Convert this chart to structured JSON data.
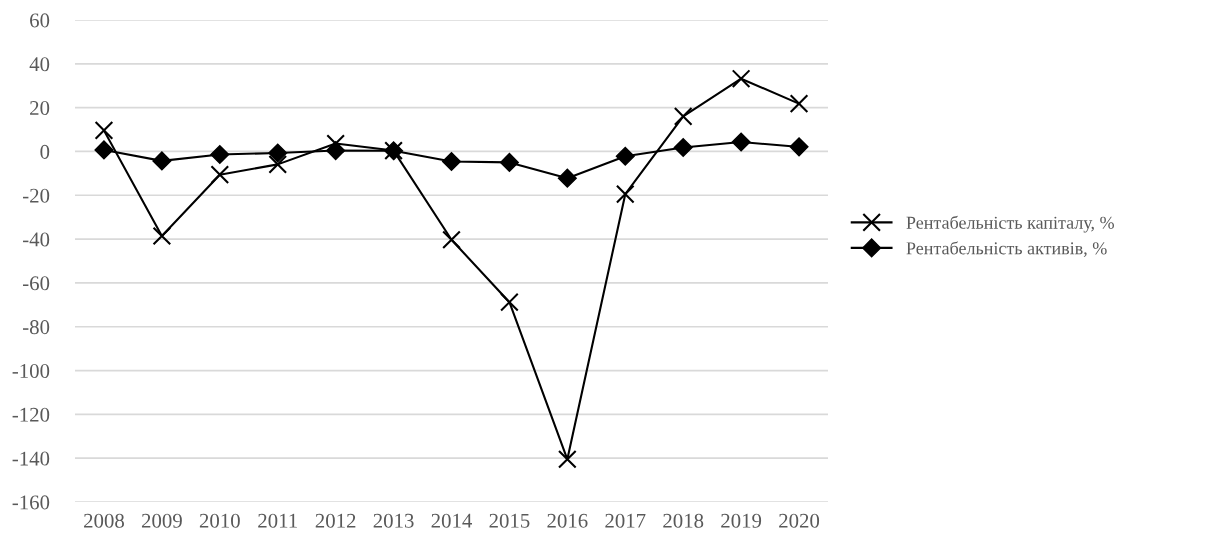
{
  "chart_data": {
    "type": "line",
    "categories": [
      "2008",
      "2009",
      "2010",
      "2011",
      "2012",
      "2013",
      "2014",
      "2015",
      "2016",
      "2017",
      "2018",
      "2019",
      "2020"
    ],
    "series": [
      {
        "name": "Рентабельність капіталу, %",
        "color": "#000000",
        "marker": "cross",
        "values": [
          9.6,
          -38.6,
          -10.6,
          -5.9,
          3.6,
          0.4,
          -40.3,
          -68.8,
          -140.5,
          -19.5,
          16,
          33.2,
          21.8
        ]
      },
      {
        "name": "Рентабельність активів, %",
        "color": "#000000",
        "marker": "diamond",
        "values": [
          0.7,
          -4.3,
          -1.4,
          -0.7,
          0.4,
          0.3,
          -4.6,
          -5,
          -12.2,
          -2.2,
          1.8,
          4.3,
          2.1
        ]
      }
    ],
    "ylim": [
      -160,
      60
    ],
    "yticks": [
      -160,
      -140,
      -120,
      -100,
      -80,
      -60,
      -40,
      -20,
      0,
      20,
      40,
      60
    ],
    "grid": "y",
    "legend": "right",
    "line_style": "solid"
  }
}
